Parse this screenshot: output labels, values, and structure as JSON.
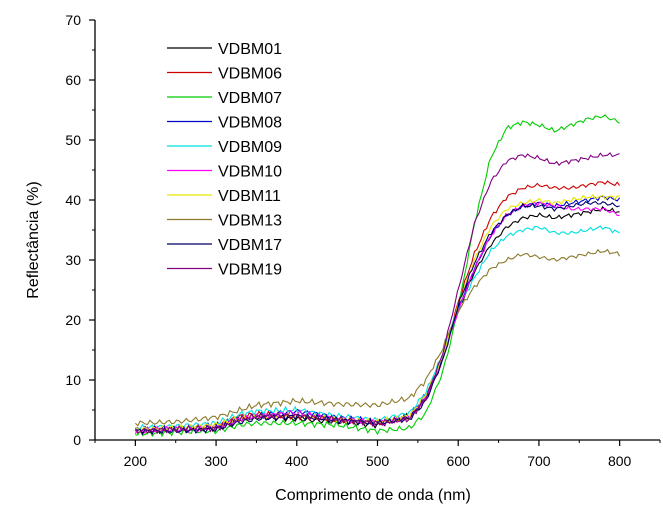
{
  "chart_data": {
    "type": "line",
    "xlabel": "Comprimento de onda (nm)",
    "ylabel": "Reflectância (%)",
    "xlim": [
      150,
      850
    ],
    "ylim": [
      0,
      70
    ],
    "xticks": [
      "200",
      "300",
      "400",
      "500",
      "600",
      "700",
      "800"
    ],
    "yticks": [
      "0",
      "10",
      "20",
      "30",
      "40",
      "50",
      "60",
      "70"
    ],
    "legend_position": "top-left",
    "grid": false,
    "x": [
      200,
      250,
      300,
      330,
      350,
      400,
      450,
      500,
      540,
      560,
      580,
      590,
      600,
      620,
      640,
      660,
      680,
      700,
      720,
      740,
      760,
      780,
      800
    ],
    "series": [
      {
        "name": "VDBM01",
        "color": "#000000",
        "values": [
          1.5,
          1.6,
          2.0,
          3.5,
          3.8,
          3.5,
          3.0,
          2.5,
          4.0,
          7.0,
          13.0,
          17.5,
          21.5,
          28.0,
          32.5,
          35.5,
          37.0,
          37.5,
          37.0,
          37.5,
          38.0,
          38.5,
          38.0
        ]
      },
      {
        "name": "VDBM06",
        "color": "#cc0000",
        "values": [
          1.5,
          1.8,
          2.3,
          4.0,
          4.3,
          4.0,
          3.3,
          2.8,
          3.8,
          7.0,
          13.5,
          18.0,
          23.0,
          31.0,
          37.0,
          40.5,
          42.0,
          42.5,
          42.0,
          42.0,
          42.5,
          43.0,
          42.5
        ]
      },
      {
        "name": "VDBM07",
        "color": "#00cc00",
        "values": [
          1.0,
          1.3,
          1.5,
          2.5,
          2.8,
          2.8,
          2.5,
          1.5,
          2.0,
          4.5,
          11.0,
          16.0,
          22.0,
          36.0,
          47.0,
          52.0,
          53.0,
          52.5,
          51.5,
          52.5,
          53.5,
          54.0,
          53.0
        ]
      },
      {
        "name": "VDBM08",
        "color": "#0000cc",
        "values": [
          1.8,
          2.0,
          2.3,
          3.8,
          4.0,
          4.8,
          3.8,
          3.0,
          4.0,
          7.5,
          13.5,
          17.5,
          22.0,
          28.5,
          34.0,
          37.5,
          39.0,
          39.5,
          39.0,
          39.5,
          40.0,
          40.5,
          40.0
        ]
      },
      {
        "name": "VDBM09",
        "color": "#00e0e0",
        "values": [
          2.0,
          2.3,
          2.8,
          4.3,
          4.8,
          5.0,
          4.0,
          3.3,
          4.5,
          8.0,
          14.0,
          18.5,
          22.0,
          27.0,
          31.5,
          34.0,
          35.0,
          35.5,
          34.5,
          34.5,
          35.0,
          35.5,
          34.5
        ]
      },
      {
        "name": "VDBM10",
        "color": "#ff00ff",
        "values": [
          1.5,
          1.8,
          2.0,
          3.5,
          4.0,
          4.5,
          3.5,
          2.8,
          3.8,
          7.0,
          13.0,
          17.5,
          21.5,
          28.5,
          34.0,
          37.5,
          39.0,
          39.5,
          39.0,
          38.5,
          38.5,
          38.5,
          37.5
        ]
      },
      {
        "name": "VDBM11",
        "color": "#e6e600",
        "values": [
          1.8,
          2.0,
          2.5,
          3.5,
          4.0,
          4.0,
          3.5,
          3.0,
          4.0,
          7.5,
          13.5,
          18.0,
          22.5,
          30.0,
          35.5,
          38.5,
          39.5,
          40.0,
          39.5,
          40.0,
          40.5,
          40.5,
          40.5
        ]
      },
      {
        "name": "VDBM13",
        "color": "#8b7a2b",
        "values": [
          2.8,
          3.0,
          3.8,
          5.0,
          5.8,
          6.5,
          6.0,
          5.8,
          7.0,
          10.0,
          15.0,
          18.5,
          21.5,
          25.5,
          28.5,
          30.0,
          31.0,
          30.5,
          30.0,
          30.5,
          31.0,
          31.5,
          31.0
        ]
      },
      {
        "name": "VDBM17",
        "color": "#000066",
        "values": [
          1.5,
          1.5,
          1.8,
          3.0,
          3.5,
          4.0,
          3.3,
          2.8,
          3.5,
          6.5,
          13.0,
          17.5,
          22.5,
          29.5,
          34.5,
          37.5,
          39.0,
          39.0,
          38.5,
          39.0,
          39.5,
          39.5,
          39.0
        ]
      },
      {
        "name": "VDBM19",
        "color": "#800080",
        "values": [
          1.5,
          1.8,
          2.0,
          3.5,
          4.0,
          4.0,
          3.5,
          2.8,
          3.5,
          7.0,
          14.0,
          19.5,
          25.0,
          36.0,
          43.0,
          46.5,
          47.5,
          47.0,
          46.0,
          46.5,
          47.0,
          47.5,
          47.5
        ]
      }
    ]
  }
}
